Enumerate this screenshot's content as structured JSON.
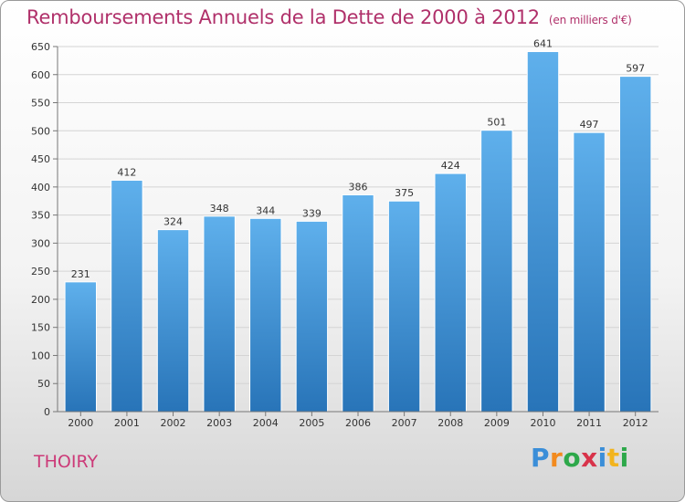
{
  "title": "Remboursements Annuels de la Dette de 2000 à 2012",
  "unit_note": "(en milliers d'€)",
  "commune": "THOIRY",
  "logo": {
    "letters": [
      "P",
      "r",
      "o",
      "x",
      "i",
      "t",
      "i"
    ],
    "colors": [
      "#3b8ed8",
      "#f28a1e",
      "#2da84a",
      "#d8334a",
      "#3b8ed8",
      "#f2b41e",
      "#2da84a"
    ]
  },
  "colors": {
    "bar_top": "#5fb0ec",
    "bar_bottom": "#2874b8",
    "title": "#b0306a",
    "commune": "#cc3a78"
  },
  "chart_data": {
    "type": "bar",
    "categories": [
      "2000",
      "2001",
      "2002",
      "2003",
      "2004",
      "2005",
      "2006",
      "2007",
      "2008",
      "2009",
      "2010",
      "2011",
      "2012"
    ],
    "values": [
      231,
      412,
      324,
      348,
      344,
      339,
      386,
      375,
      424,
      501,
      641,
      497,
      597
    ],
    "ylim": [
      0,
      650
    ],
    "yticks": [
      "0",
      "50",
      "100",
      "150",
      "200",
      "250",
      "300",
      "350",
      "400",
      "450",
      "500",
      "550",
      "600",
      "650"
    ],
    "grid": true,
    "xlabel": "",
    "ylabel": ""
  }
}
